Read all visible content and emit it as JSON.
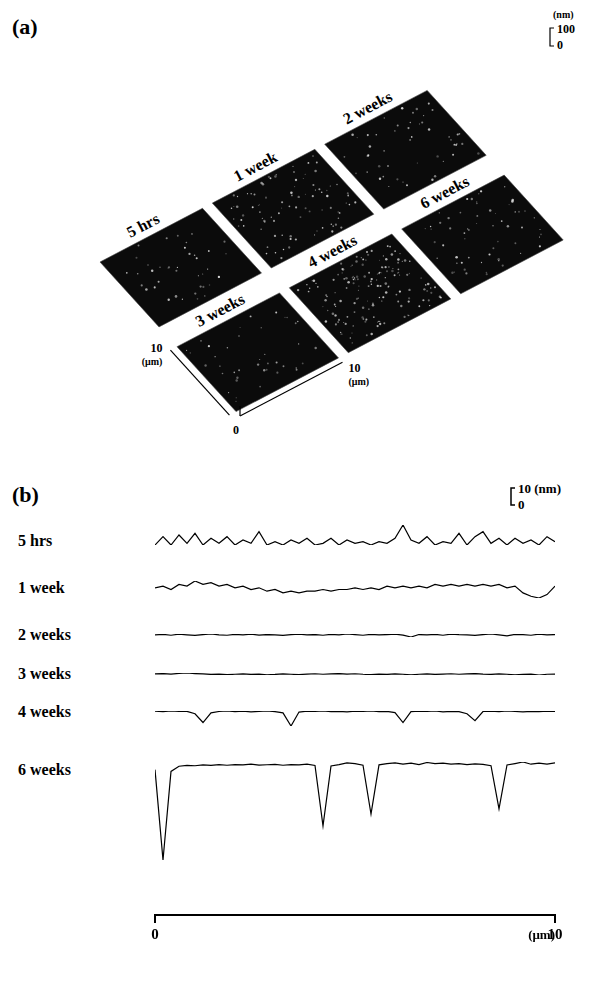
{
  "panel_a": {
    "letter": "(a)",
    "images": [
      "5 hrs",
      "1 week",
      "2 weeks",
      "3 weeks",
      "4 weeks",
      "6 weeks"
    ],
    "height_scale": {
      "unit": "(nm)",
      "values": [
        0,
        100
      ]
    },
    "axes": {
      "origin": 0,
      "x": {
        "value": 10,
        "unit": "(μm)"
      },
      "y": {
        "value": 10,
        "unit": "(μm)"
      }
    }
  },
  "chart_data": {
    "type": "line",
    "title": "(b)",
    "x": [
      0,
      0.2,
      0.4,
      0.6,
      0.8,
      1,
      1.2,
      1.4,
      1.6,
      1.8,
      2,
      2.2,
      2.4,
      2.6,
      2.8,
      3,
      3.2,
      3.4,
      3.6,
      3.8,
      4,
      4.2,
      4.4,
      4.6,
      4.8,
      5,
      5.2,
      5.4,
      5.6,
      5.8,
      6,
      6.2,
      6.4,
      6.6,
      6.8,
      7,
      7.2,
      7.4,
      7.6,
      7.8,
      8,
      8.2,
      8.4,
      8.6,
      8.8,
      9,
      9.2,
      9.4,
      9.6,
      9.8,
      10
    ],
    "xlim": [
      0,
      10
    ],
    "xticks": [
      0,
      10
    ],
    "x_label": "(μm)",
    "tick_labels": "x",
    "grid": false,
    "scale_bar": {
      "values": [
        0,
        10
      ],
      "unit": "(nm)"
    },
    "series": [
      {
        "name": "5 hrs",
        "color": "#000000",
        "values": [
          1,
          6,
          1,
          7,
          2,
          8,
          1,
          5,
          2,
          6,
          1,
          4,
          2,
          9,
          1,
          3,
          1,
          4,
          2,
          5,
          1,
          2,
          5,
          1,
          4,
          2,
          3,
          1,
          3,
          2,
          5,
          13,
          4,
          2,
          6,
          1,
          3,
          2,
          8,
          1,
          6,
          9,
          2,
          5,
          1,
          5,
          2,
          4,
          1,
          6,
          3
        ]
      },
      {
        "name": "1 week",
        "color": "#000000",
        "values": [
          4,
          5,
          3,
          6,
          5,
          8,
          6,
          7,
          5,
          6,
          4,
          5,
          3,
          4,
          2,
          3,
          1,
          2,
          1,
          2,
          2,
          3,
          2,
          3,
          3,
          4,
          3,
          4,
          3,
          5,
          4,
          5,
          4,
          5,
          4,
          6,
          5,
          6,
          5,
          6,
          5,
          6,
          5,
          6,
          4,
          5,
          1,
          -1,
          -2,
          0,
          5
        ]
      },
      {
        "name": "2 weeks",
        "color": "#000000",
        "values": [
          0,
          0.3,
          -0.2,
          0.4,
          0,
          -0.3,
          0.2,
          0.5,
          0,
          -0.2,
          0.3,
          0,
          0.4,
          -0.1,
          0.2,
          0,
          -0.3,
          0.1,
          0.4,
          0,
          0.2,
          -0.2,
          0.3,
          0,
          0.5,
          0.1,
          -0.2,
          0.3,
          0,
          0.2,
          0.4,
          -0.1,
          -1.2,
          0.2,
          0,
          0.3,
          -0.2,
          0.4,
          0.1,
          0,
          -0.3,
          0.2,
          0.5,
          0,
          -0.6,
          0.3,
          0.1,
          -0.2,
          0.4,
          0,
          0.2
        ]
      },
      {
        "name": "3 weeks",
        "color": "#000000",
        "values": [
          0.3,
          0.5,
          0.2,
          0.6,
          0.8,
          0.5,
          0.3,
          0,
          0.2,
          -0.1,
          0.1,
          0.3,
          0,
          0.2,
          -0.2,
          0,
          0.3,
          0.1,
          -0.1,
          0.2,
          0.4,
          0.1,
          0.3,
          0.5,
          0.2,
          0.4,
          0.1,
          -0.1,
          0.2,
          0,
          0.3,
          0.1,
          -0.2,
          0.1,
          0.3,
          0,
          0.2,
          0.4,
          0.1,
          0.3,
          0.5,
          0.2,
          0,
          0.3,
          0.1,
          -0.2,
          0,
          0.2,
          -0.3,
          0.1,
          0.2
        ]
      },
      {
        "name": "4 weeks",
        "color": "#000000",
        "values": [
          0.5,
          0.2,
          0.6,
          0.3,
          0.4,
          -1,
          -6,
          -0.5,
          0.3,
          0.6,
          0.2,
          0.5,
          0.1,
          0.4,
          0.6,
          0.2,
          -0.5,
          -8,
          0,
          0.5,
          0.3,
          0.6,
          0.2,
          0.4,
          0.1,
          0.5,
          0.3,
          0.6,
          0.2,
          0.4,
          -0.3,
          -6,
          0.2,
          0.5,
          0.3,
          0.6,
          0.1,
          0.4,
          0.2,
          -1,
          -5,
          0.3,
          0.5,
          0.2,
          0.6,
          0.3,
          0.1,
          0.4,
          0.2,
          0.5,
          0.3
        ]
      },
      {
        "name": "6 weeks",
        "color": "#000000",
        "values": [
          -2,
          -55,
          -3,
          0,
          0.5,
          0.3,
          0.8,
          0.5,
          1,
          0.6,
          1,
          0.8,
          1.2,
          0.7,
          0.9,
          1.1,
          0.6,
          1,
          0.8,
          1.2,
          0.5,
          -35,
          0.2,
          1,
          2,
          1.5,
          0.6,
          -28,
          0.8,
          1.5,
          2,
          1.2,
          1.8,
          1,
          2.2,
          1.5,
          1.8,
          1.2,
          1.6,
          1,
          1.4,
          1.1,
          0.3,
          -25,
          0.8,
          1.6,
          2.5,
          1.2,
          1.8,
          1.3,
          2
        ]
      }
    ]
  }
}
